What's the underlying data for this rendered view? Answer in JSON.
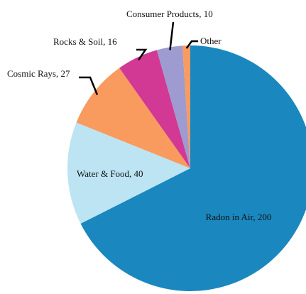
{
  "chart_data": {
    "type": "pie",
    "title": "",
    "start": "top",
    "direction": "clockwise",
    "slices": [
      {
        "label": "Radon in Air",
        "value": 200,
        "display": "Radon in Air, 200",
        "color": "#1a87bf"
      },
      {
        "label": "Water & Food",
        "value": 40,
        "display": "Water & Food, 40",
        "color": "#bde4f3"
      },
      {
        "label": "Cosmic Rays",
        "value": 27,
        "display": "Cosmic Rays, 27",
        "color": "#f99a5e"
      },
      {
        "label": "Rocks & Soil",
        "value": 16,
        "display": "Rocks & Soil, 16",
        "color": "#d13994"
      },
      {
        "label": "Consumer Products",
        "value": 10,
        "display": "Consumer Products, 10",
        "color": "#9d9bd0"
      },
      {
        "label": "Other",
        "value": 3,
        "display": "Other",
        "color": "#f99a5e"
      }
    ]
  }
}
